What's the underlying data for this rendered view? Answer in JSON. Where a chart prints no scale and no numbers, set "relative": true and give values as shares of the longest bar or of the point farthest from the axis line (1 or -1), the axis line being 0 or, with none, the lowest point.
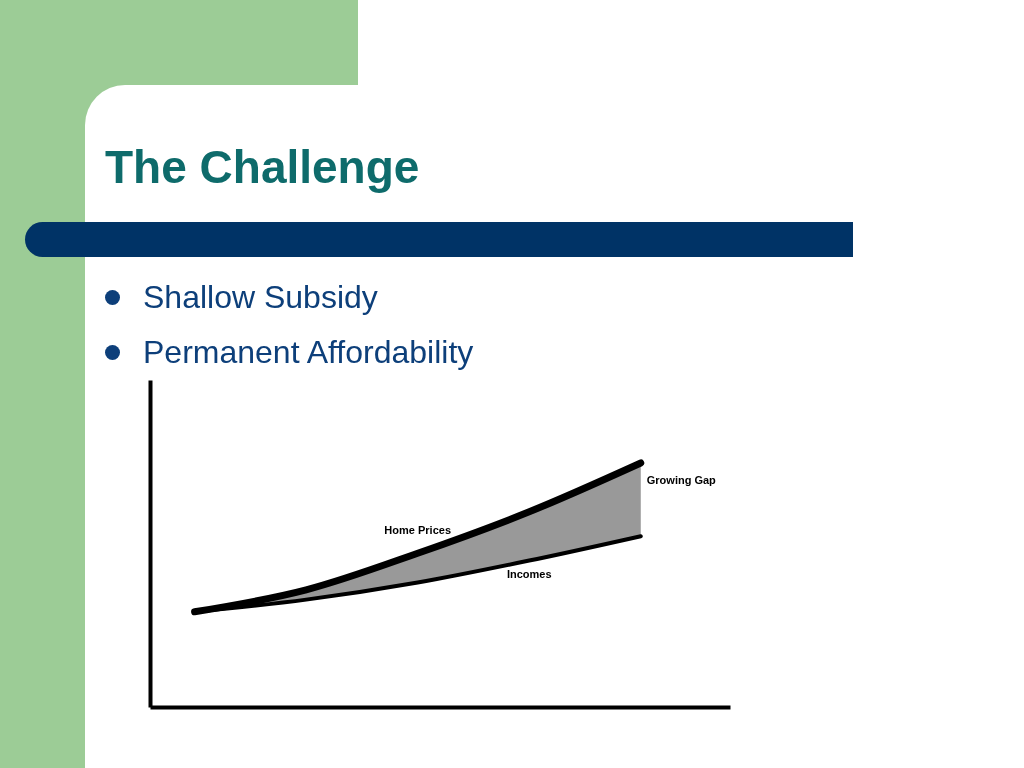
{
  "chart_data": {
    "type": "line",
    "title": "The Challenge",
    "relative": true,
    "categories": [
      null,
      null,
      null,
      null,
      null
    ],
    "annotations": [
      "Shallow Subsidy",
      "Permanent Affordability",
      "Growing Gap"
    ],
    "series": [
      {
        "name": "Home Prices",
        "color": "#000000",
        "values": [
          0.39,
          0.48,
          0.63,
          0.8,
          1.0
        ],
        "lower": [
          0.39,
          0.44,
          0.51,
          0.6,
          0.7
        ],
        "upper": [
          0.39,
          0.48,
          0.63,
          0.8,
          1.0
        ]
      },
      {
        "name": "Incomes",
        "color": "#000000",
        "values": [
          0.39,
          0.44,
          0.51,
          0.6,
          0.7
        ]
      }
    ]
  }
}
